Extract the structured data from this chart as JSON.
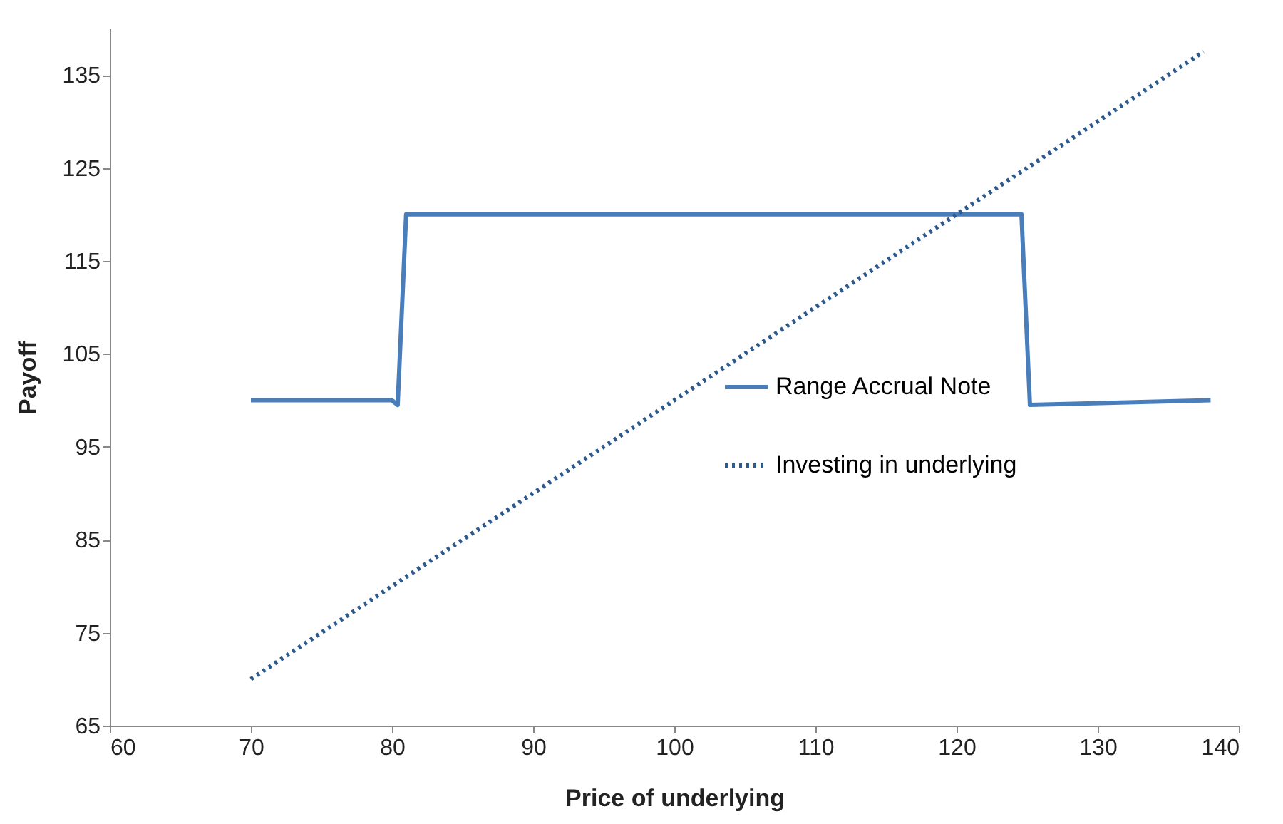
{
  "chart_data": {
    "type": "line",
    "xlabel": "Price of underlying",
    "ylabel": "Payoff",
    "series": [
      {
        "name": "Range Accrual Note",
        "color": "#4a7ebb",
        "line_style": "solid",
        "x": [
          70,
          80,
          80.4,
          81,
          124,
          124.6,
          125.2,
          138
        ],
        "values": [
          100,
          100,
          99.5,
          120,
          120,
          120,
          99.5,
          100
        ]
      },
      {
        "name": "Investing in underlying",
        "color": "#2c5a8e",
        "line_style": "dotted",
        "x": [
          70,
          137.5
        ],
        "values": [
          70,
          137.5
        ]
      }
    ],
    "xlim": [
      60,
      140
    ],
    "xticks": [
      60,
      70,
      80,
      90,
      100,
      110,
      120,
      130,
      140
    ],
    "ylim": [
      65,
      140
    ],
    "yticks": [
      65,
      75,
      85,
      95,
      105,
      115,
      125,
      135
    ],
    "grid": false,
    "legend": "right",
    "marker": "none"
  }
}
